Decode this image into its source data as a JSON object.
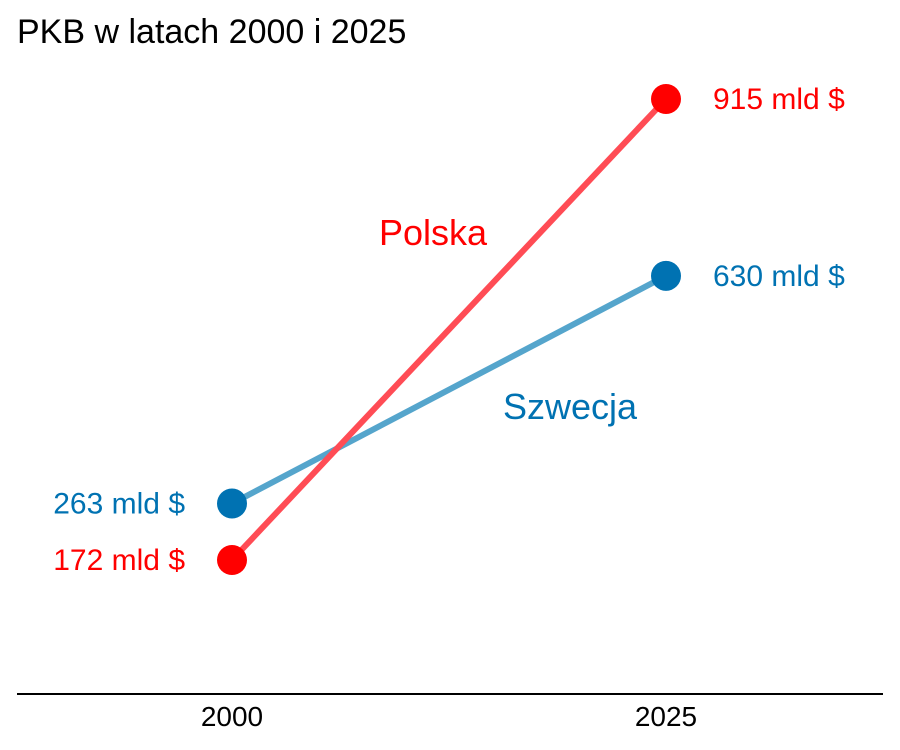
{
  "chart_data": {
    "type": "line",
    "title": "PKB w latach 2000 i 2025",
    "categories": [
      "2000",
      "2025"
    ],
    "series": [
      {
        "name": "Polska",
        "values": [
          172,
          915
        ],
        "value_labels": [
          "172 mld $",
          "915 mld $"
        ],
        "line_color": "#ff4c55",
        "marker_color": "#ff0000",
        "label_color": "#ff0000"
      },
      {
        "name": "Szwecja",
        "values": [
          263,
          630
        ],
        "value_labels": [
          "263 mld $",
          "630 mld $"
        ],
        "line_color": "#55a5cc",
        "marker_color": "#0072b2",
        "label_color": "#0072b2"
      }
    ],
    "xlabel": "",
    "ylabel": "",
    "ylim": [
      0,
      1000
    ],
    "grid": false,
    "legend": "inline labels"
  }
}
